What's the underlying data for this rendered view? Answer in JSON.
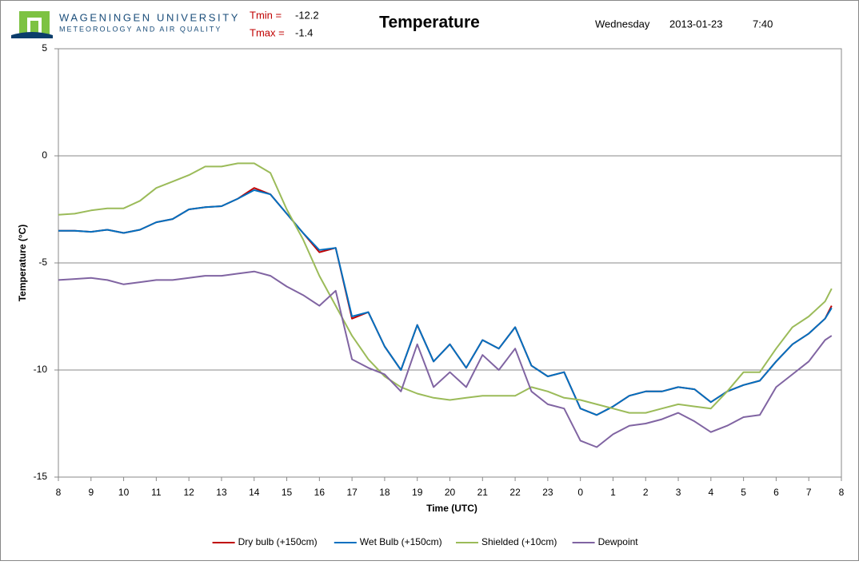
{
  "chart_data": {
    "type": "line",
    "org": "WAGENINGEN UNIVERSITY",
    "dept": "METEOROLOGY AND AIR QUALITY",
    "stats": [
      {
        "label": "Tmin =",
        "value": -12.2
      },
      {
        "label": "Tmax =",
        "value": -1.4
      }
    ],
    "title": "Temperature",
    "weekday": "Wednesday",
    "date": "2013-01-23",
    "time": "7:40",
    "x_label": "Time (UTC)",
    "y_label": "Temperature (°C)",
    "xlim": [
      8,
      32
    ],
    "ylim": [
      -15,
      5
    ],
    "yticks": [
      -15,
      -10,
      -5,
      0,
      5
    ],
    "xticks": [
      8,
      9,
      10,
      11,
      12,
      13,
      14,
      15,
      16,
      17,
      18,
      19,
      20,
      21,
      22,
      23,
      {
        "value": 24,
        "label": "0"
      },
      {
        "value": 25,
        "label": "1"
      },
      {
        "value": 26,
        "label": "2"
      },
      {
        "value": 27,
        "label": "3"
      },
      {
        "value": 28,
        "label": "4"
      },
      {
        "value": 29,
        "label": "5"
      },
      {
        "value": 30,
        "label": "6"
      },
      {
        "value": 31,
        "label": "7"
      },
      {
        "value": 32,
        "label": "8"
      }
    ],
    "grid": true,
    "legend": "bottom",
    "x": [
      8,
      8.5,
      9,
      9.5,
      10,
      10.5,
      11,
      11.5,
      12,
      12.5,
      13,
      13.5,
      14,
      14.5,
      15,
      15.5,
      16,
      16.5,
      17,
      17.5,
      18,
      18.5,
      19,
      19.5,
      20,
      20.5,
      21,
      21.5,
      22,
      22.5,
      23,
      23.5,
      24,
      24.5,
      25,
      25.5,
      26,
      26.5,
      27,
      27.5,
      28,
      28.5,
      29,
      29.5,
      30,
      30.5,
      31,
      31.5,
      31.7
    ],
    "series": [
      {
        "name": "Dry bulb (+150cm)",
        "color": "#c00000",
        "values": [
          -3.5,
          -3.5,
          -3.55,
          -3.45,
          -3.6,
          -3.45,
          -3.1,
          -2.95,
          -2.5,
          -2.4,
          -2.35,
          -2.0,
          -1.5,
          -1.8,
          -2.7,
          -3.6,
          -4.5,
          -4.3,
          -7.6,
          -7.3,
          -8.9,
          -10.0,
          -7.9,
          -9.6,
          -8.8,
          -9.9,
          -8.6,
          -9.0,
          -8.0,
          -9.8,
          -10.3,
          -10.1,
          -11.8,
          -12.1,
          -11.7,
          -11.2,
          -11.0,
          -11.0,
          -10.8,
          -10.9,
          -11.5,
          -11.0,
          -10.7,
          -10.5,
          -9.6,
          -8.8,
          -8.3,
          -7.6,
          -7.0
        ]
      },
      {
        "name": "Wet Bulb (+150cm)",
        "color": "#0070c0",
        "values": [
          -3.5,
          -3.5,
          -3.55,
          -3.45,
          -3.6,
          -3.45,
          -3.1,
          -2.95,
          -2.5,
          -2.4,
          -2.35,
          -2.0,
          -1.6,
          -1.8,
          -2.7,
          -3.6,
          -4.4,
          -4.3,
          -7.5,
          -7.3,
          -8.9,
          -10.0,
          -7.9,
          -9.6,
          -8.8,
          -9.9,
          -8.6,
          -9.0,
          -8.0,
          -9.8,
          -10.3,
          -10.1,
          -11.8,
          -12.1,
          -11.7,
          -11.2,
          -11.0,
          -11.0,
          -10.8,
          -10.9,
          -11.5,
          -11.0,
          -10.7,
          -10.5,
          -9.6,
          -8.8,
          -8.3,
          -7.6,
          -7.1
        ]
      },
      {
        "name": "Shielded (+10cm)",
        "color": "#9bbb59",
        "values": [
          -2.75,
          -2.7,
          -2.55,
          -2.45,
          -2.45,
          -2.1,
          -1.5,
          -1.2,
          -0.9,
          -0.5,
          -0.5,
          -0.35,
          -0.35,
          -0.8,
          -2.5,
          -3.9,
          -5.6,
          -7.0,
          -8.4,
          -9.5,
          -10.3,
          -10.8,
          -11.1,
          -11.3,
          -11.4,
          -11.3,
          -11.2,
          -11.2,
          -11.2,
          -10.8,
          -11.0,
          -11.3,
          -11.4,
          -11.6,
          -11.8,
          -12.0,
          -12.0,
          -11.8,
          -11.6,
          -11.7,
          -11.8,
          -11.0,
          -10.1,
          -10.1,
          -9.0,
          -8.0,
          -7.5,
          -6.8,
          -6.2
        ]
      },
      {
        "name": "Dewpoint",
        "color": "#8064a2",
        "values": [
          -5.8,
          -5.75,
          -5.7,
          -5.8,
          -6.0,
          -5.9,
          -5.8,
          -5.8,
          -5.7,
          -5.6,
          -5.6,
          -5.5,
          -5.4,
          -5.6,
          -6.1,
          -6.5,
          -7.0,
          -6.3,
          -9.5,
          -9.9,
          -10.2,
          -11.0,
          -8.8,
          -10.8,
          -10.1,
          -10.8,
          -9.3,
          -10.0,
          -9.0,
          -11.0,
          -11.6,
          -11.8,
          -13.3,
          -13.6,
          -13.0,
          -12.6,
          -12.5,
          -12.3,
          -12.0,
          -12.4,
          -12.9,
          -12.6,
          -12.2,
          -12.1,
          -10.8,
          -10.2,
          -9.6,
          -8.6,
          -8.4
        ]
      }
    ]
  }
}
